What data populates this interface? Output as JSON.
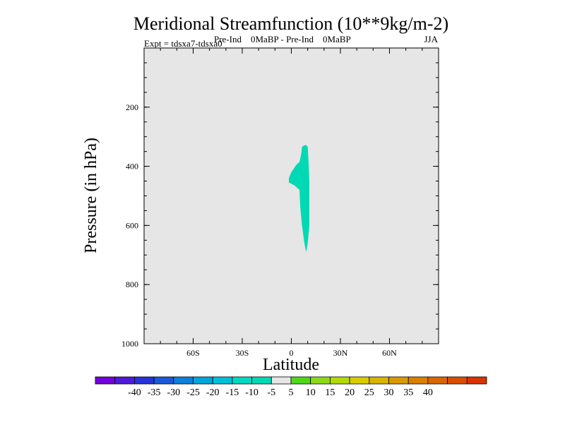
{
  "chart_data": {
    "type": "contour",
    "title": "Meridional Streamfunction (10**9kg/m-2)",
    "subtitle_left": "Expt = tdsxa7-tdsxa0",
    "subtitle_center": "Pre-Ind    0MaBP - Pre-Ind    0MaBP",
    "subtitle_right": "JJA",
    "xlabel": "Latitude",
    "ylabel": "Pressure (in hPa)",
    "xlim": [
      -90,
      90
    ],
    "ylim": [
      1000,
      0
    ],
    "xticks": [
      {
        "value": -60,
        "label": "60S"
      },
      {
        "value": -30,
        "label": "30S"
      },
      {
        "value": 0,
        "label": "0"
      },
      {
        "value": 30,
        "label": "30N"
      },
      {
        "value": 60,
        "label": "60N"
      }
    ],
    "yticks": [
      {
        "value": 200,
        "label": "200"
      },
      {
        "value": 400,
        "label": "400"
      },
      {
        "value": 600,
        "label": "600"
      },
      {
        "value": 800,
        "label": "800"
      },
      {
        "value": 1000,
        "label": "1000"
      }
    ],
    "background_value_range": [
      -5,
      5
    ],
    "background_color": "#e6e6e6",
    "shaded_regions": [
      {
        "name": "positive-5-to-10",
        "range": [
          5,
          10
        ],
        "color": "#00d9b3",
        "outline": [
          [
            7.5,
            330
          ],
          [
            9,
            328
          ],
          [
            10,
            335
          ],
          [
            10.5,
            380
          ],
          [
            11,
            450
          ],
          [
            11,
            520
          ],
          [
            11,
            600
          ],
          [
            10,
            660
          ],
          [
            9,
            690
          ],
          [
            8,
            660
          ],
          [
            6.5,
            600
          ],
          [
            5.5,
            540
          ],
          [
            5,
            480
          ],
          [
            2,
            465
          ],
          [
            -1.5,
            455
          ],
          [
            -1.5,
            440
          ],
          [
            0,
            420
          ],
          [
            3,
            395
          ],
          [
            5,
            385
          ],
          [
            6,
            360
          ],
          [
            6.5,
            335
          ]
        ]
      }
    ],
    "colorbar": {
      "colors": [
        "#7300d9",
        "#4d1ad9",
        "#2633d9",
        "#1a59d9",
        "#0d80d9",
        "#00a6d9",
        "#00c0d9",
        "#00d9c0",
        "#00d9b3",
        "#e6e6e6",
        "#4dd91a",
        "#8cd91a",
        "#b3d90d",
        "#d9cc00",
        "#d9b300",
        "#d99900",
        "#d98000",
        "#d96600",
        "#d94d00",
        "#d93300"
      ],
      "labels": [
        "-40",
        "-35",
        "-30",
        "-25",
        "-20",
        "-15",
        "-10",
        "-5",
        "5",
        "10",
        "15",
        "20",
        "25",
        "30",
        "35",
        "40"
      ]
    }
  }
}
